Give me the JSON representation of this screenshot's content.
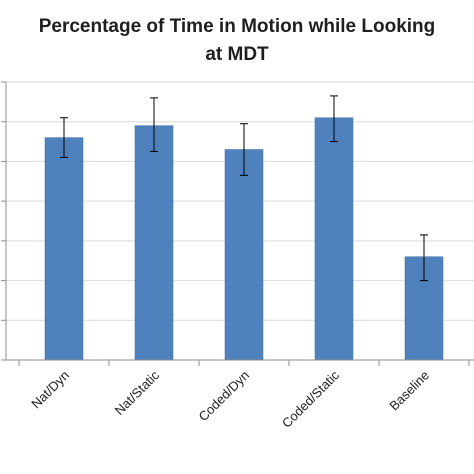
{
  "chart_data": {
    "type": "bar",
    "title_lines": [
      "Percentage of Time in Motion while Looking",
      "at MDT"
    ],
    "categories": [
      "Nat/Dyn",
      "Nat/Static",
      "Coded/Dyn",
      "Coded/Static",
      "Baseline"
    ],
    "values": [
      56,
      59,
      53,
      61,
      26
    ],
    "error": [
      [
        51,
        61
      ],
      [
        52.5,
        66
      ],
      [
        46.5,
        59.5
      ],
      [
        55,
        66.5
      ],
      [
        20,
        31.5
      ]
    ],
    "ylim": [
      0,
      70
    ],
    "y_gridlines": [
      10,
      20,
      30,
      40,
      50,
      60,
      70
    ],
    "grid": true,
    "legend": "none",
    "colors": {
      "bar": "#4f81bd",
      "bar_edge": "#3c6aa0",
      "grid": "#d9d9d9",
      "axis": "#8c8c8c",
      "error": "#000000"
    }
  }
}
